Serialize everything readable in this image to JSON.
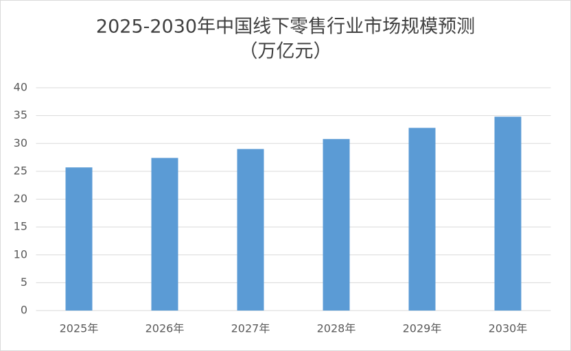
{
  "chart_data": {
    "type": "bar",
    "title": "2025-2030年中国线下零售行业市场规模预测",
    "subtitle": "（万亿元）",
    "categories": [
      "2025年",
      "2026年",
      "2027年",
      "2028年",
      "2029年",
      "2030年"
    ],
    "values": [
      25.7,
      27.4,
      29.0,
      30.8,
      32.8,
      34.8
    ],
    "color": "#5b9bd5",
    "ylim": [
      0,
      40
    ],
    "yticks": [
      0,
      5,
      10,
      15,
      20,
      25,
      30,
      35,
      40
    ],
    "grid": true
  }
}
